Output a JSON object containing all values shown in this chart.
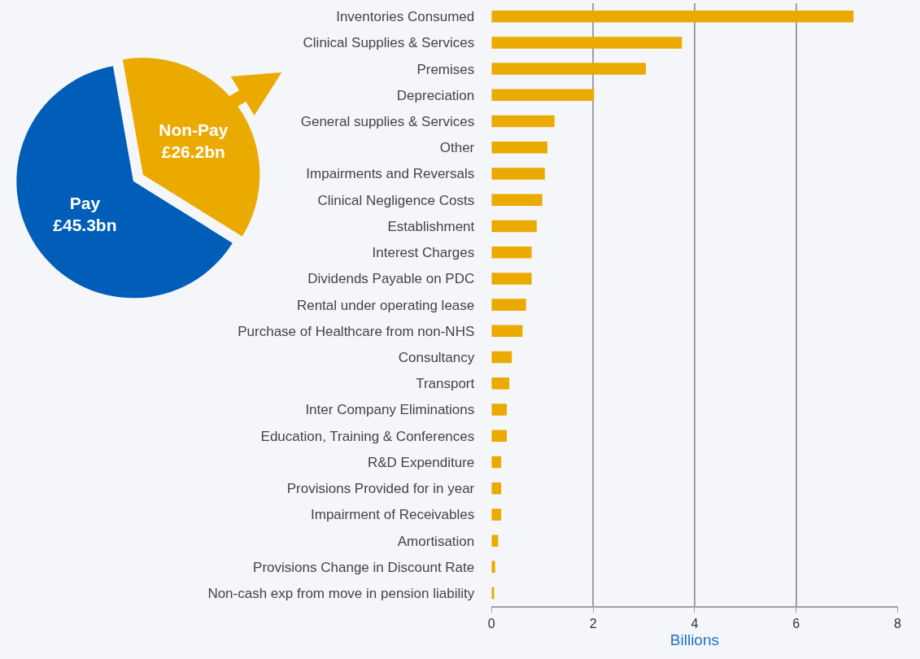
{
  "chart_data": [
    {
      "type": "pie",
      "categories": [
        "Non-Pay",
        "Pay"
      ],
      "values": [
        26.2,
        45.3
      ],
      "value_labels": [
        "£26.2bn",
        "£45.3bn"
      ],
      "colors": [
        "#ebaa00",
        "#005eb8"
      ]
    },
    {
      "type": "bar",
      "orientation": "horizontal",
      "xlabel": "Billions",
      "categories": [
        "Inventories Consumed",
        "Clinical Supplies & Services",
        "Premises",
        "Depreciation",
        "General supplies & Services",
        "Other",
        "Impairments and Reversals",
        "Clinical Negligence Costs",
        "Establishment",
        "Interest Charges",
        "Dividends Payable on PDC",
        "Rental under operating lease",
        "Purchase of Healthcare from non-NHS",
        "Consultancy",
        "Transport",
        "Inter Company Eliminations",
        "Education, Training & Conferences",
        "R&D Expenditure",
        "Provisions Provided for in year",
        "Impairment of Receivables",
        "Amortisation",
        "Provisions Change in Discount Rate",
        "Non-cash exp from move in pension liability"
      ],
      "values": [
        7.13,
        3.75,
        3.04,
        2.02,
        1.24,
        1.1,
        1.05,
        1.0,
        0.89,
        0.79,
        0.79,
        0.68,
        0.61,
        0.4,
        0.35,
        0.3,
        0.3,
        0.19,
        0.19,
        0.19,
        0.13,
        0.07,
        0.05
      ],
      "color": "#ebaa00",
      "xlim": [
        0,
        8
      ],
      "xticks": [
        0,
        2,
        4,
        6,
        8
      ],
      "grid": "x"
    }
  ]
}
